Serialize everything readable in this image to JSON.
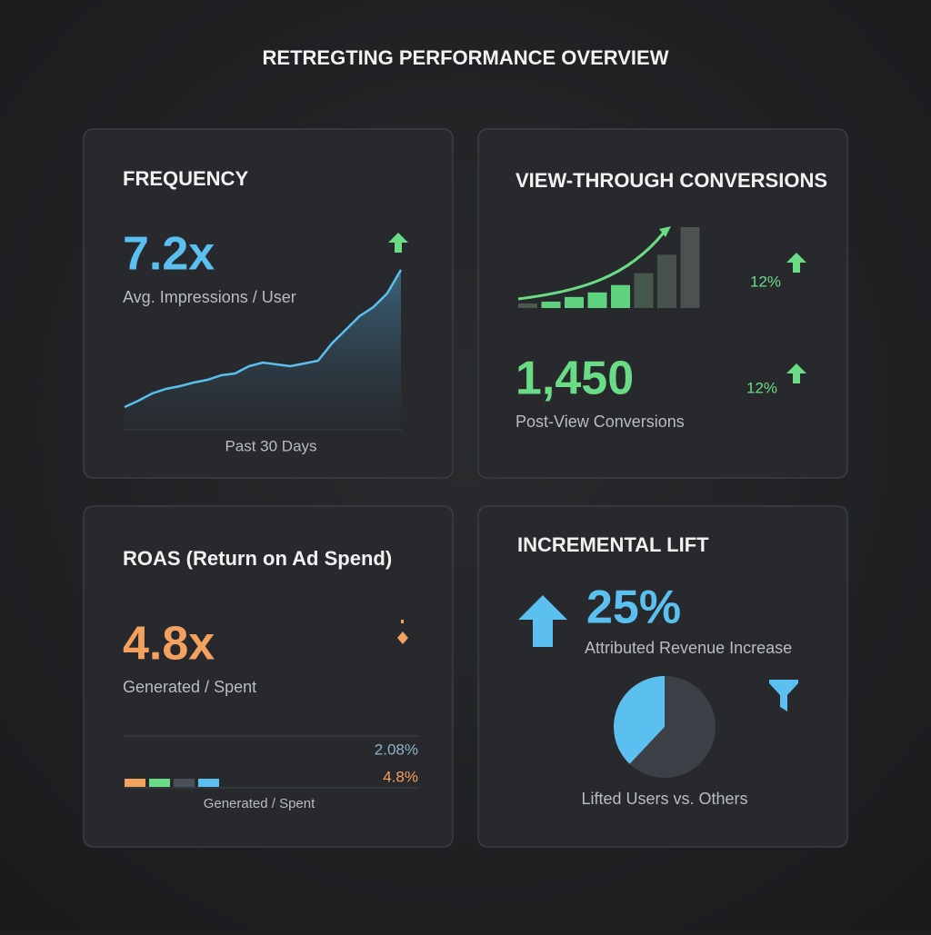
{
  "title": "RETREGTING PERFORMANCE OVERVIEW",
  "cards": [
    {
      "title": "FREQUENCY",
      "value": "7.2x",
      "label": "Avg. Impressions / User",
      "footer": "Past 30 Days",
      "trend": [
        25,
        32,
        40,
        45,
        48,
        52,
        55,
        60,
        62,
        70,
        74,
        72,
        70,
        73,
        76,
        95,
        110,
        125,
        135,
        150,
        176
      ],
      "color": "#5bc0f0"
    },
    {
      "title": "VIEW-THROUGH CONVERSIONS",
      "bars": [
        5,
        7,
        12,
        17,
        25,
        38,
        58,
        88
      ],
      "bar_colors": [
        "#4a5a50",
        "#5fd37f",
        "#5fd37f",
        "#5fd37f",
        "#5fd37f",
        "#45574c",
        "#48524d",
        "#4b5250"
      ],
      "change_top": "12%",
      "value": "1,450",
      "change": "12%",
      "label": "Post-View Conversions",
      "color": "#6bdc86"
    },
    {
      "title": "ROAS (Return on Ad Spend)",
      "value": "4.8x",
      "label": "Generated / Spent",
      "bar_labels": [
        "2.08%",
        "4.8%"
      ],
      "footer": "Generated / Spent",
      "color": "#f3a15f"
    },
    {
      "title": "INCREMENTAL LIFT",
      "value": "25%",
      "label": "Attributed Revenue Increase",
      "pie": [
        38,
        62
      ],
      "pie_colors": [
        "#5bc0f0",
        "#3c4046"
      ],
      "footer": "Lifted Users vs. Others",
      "color": "#5bc0f0"
    }
  ]
}
